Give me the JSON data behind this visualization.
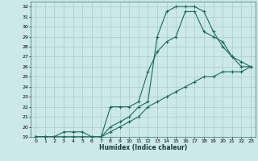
{
  "xlabel": "Humidex (Indice chaleur)",
  "background_color": "#cce8e8",
  "grid_color": "#aacccc",
  "line_color": "#1a6b5a",
  "xlim": [
    -0.5,
    23.5
  ],
  "ylim": [
    19,
    32.5
  ],
  "xticks": [
    0,
    1,
    2,
    3,
    4,
    5,
    6,
    7,
    8,
    9,
    10,
    11,
    12,
    13,
    14,
    15,
    16,
    17,
    18,
    19,
    20,
    21,
    22,
    23
  ],
  "yticks": [
    19,
    20,
    21,
    22,
    23,
    24,
    25,
    26,
    27,
    28,
    29,
    30,
    31,
    32
  ],
  "line1_x": [
    0,
    1,
    2,
    3,
    4,
    5,
    6,
    7,
    8,
    9,
    10,
    11,
    12,
    13,
    14,
    15,
    16,
    17,
    18,
    19,
    20,
    21,
    22,
    23
  ],
  "line1_y": [
    19,
    19,
    19,
    19.5,
    19.5,
    19.5,
    19,
    19,
    20,
    20.5,
    21,
    22,
    22.5,
    29.0,
    31.5,
    32,
    32,
    32,
    31.5,
    29.5,
    28,
    27,
    26,
    26
  ],
  "line2_x": [
    0,
    1,
    2,
    3,
    4,
    5,
    6,
    7,
    8,
    9,
    10,
    11,
    12,
    13,
    14,
    15,
    16,
    17,
    18,
    19,
    20,
    21,
    22,
    23
  ],
  "line2_y": [
    19,
    19,
    19,
    19,
    19,
    19,
    19,
    19,
    22,
    22,
    22,
    22.5,
    25.5,
    27.5,
    28.5,
    29,
    31.5,
    31.5,
    29.5,
    29,
    28.5,
    27,
    26.5,
    26
  ],
  "line3_x": [
    0,
    1,
    2,
    3,
    4,
    5,
    6,
    7,
    8,
    9,
    10,
    11,
    12,
    13,
    14,
    15,
    16,
    17,
    18,
    19,
    20,
    21,
    22,
    23
  ],
  "line3_y": [
    19,
    19,
    19,
    19,
    19,
    19,
    19,
    19,
    19.5,
    20,
    20.5,
    21,
    22,
    22.5,
    23,
    23.5,
    24,
    24.5,
    25,
    25,
    25.5,
    25.5,
    25.5,
    26
  ]
}
